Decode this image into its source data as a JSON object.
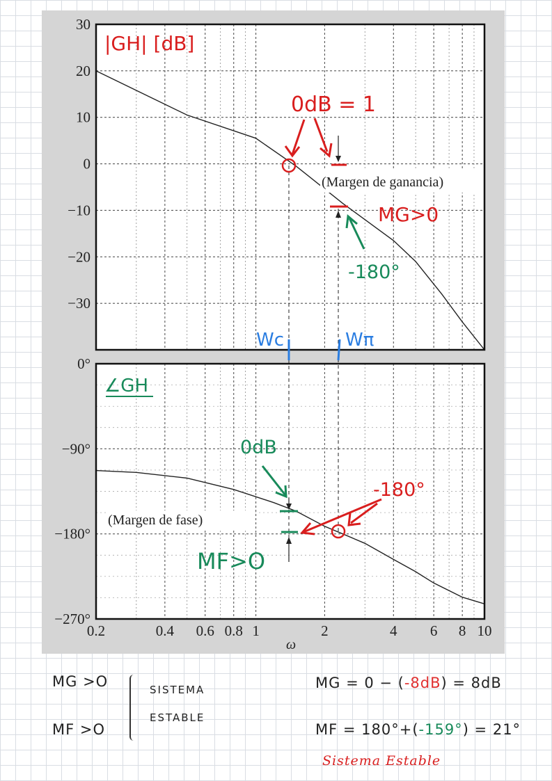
{
  "chart_data": [
    {
      "type": "line",
      "title": "|GH| [dB]",
      "xlabel": "ω",
      "xscale": "log",
      "xlim": [
        0.2,
        10
      ],
      "ylim": [
        -40,
        30
      ],
      "yticks": [
        "30",
        "20",
        "10",
        "0",
        "−10",
        "−20",
        "−30"
      ],
      "grid": true,
      "series": [
        {
          "x": [
            0.2,
            0.5,
            1.0,
            1.5,
            2.4,
            3.0,
            4.0,
            5.0,
            6.5,
            8.0,
            10.0
          ],
          "y": [
            20,
            10.5,
            5.5,
            -0.5,
            -8.5,
            -12,
            -16.5,
            -21,
            -28,
            -34,
            -40
          ]
        }
      ],
      "annotations": {
        "odb": "0dB = 1",
        "gain_margin": "(Margen de ganancia)",
        "mg_pos": "MG>0",
        "m180": "-180°",
        "wc": "Wc",
        "wpi": "Wπ"
      }
    },
    {
      "type": "line",
      "title": "∠GH",
      "xlabel": "ω",
      "xscale": "log",
      "xlim": [
        0.2,
        10
      ],
      "ylim": [
        -270,
        0
      ],
      "yticks": [
        "0°",
        "−90°",
        "−180°",
        "−270°"
      ],
      "xticks": [
        "0.2",
        "0.4",
        "0.6",
        "0.8",
        "1",
        "2",
        "4",
        "6",
        "8",
        "10"
      ],
      "grid": true,
      "series": [
        {
          "x": [
            0.2,
            0.3,
            0.5,
            0.8,
            1.2,
            1.5,
            2.0,
            2.4,
            3.0,
            4.0,
            5.0,
            6.0,
            8.0,
            10.0
          ],
          "y": [
            -113,
            -115,
            -121,
            -133,
            -147,
            -156,
            -172,
            -180,
            -190,
            -207,
            -220,
            -232,
            -247,
            -254
          ]
        }
      ],
      "annotations": {
        "odb": "0dB",
        "phase_margin": "(Margen de fase)",
        "m180": "-180°",
        "mf_pos": "MF>O"
      }
    }
  ],
  "notes": {
    "mg": "MG >O",
    "mf": "MF >O",
    "sistema": "SISTEMA",
    "estable": "ESTABLE",
    "mg_eq_a": "MG = 0 − (",
    "mg_eq_b": "-8dB",
    "mg_eq_c": ") = 8dB",
    "mf_eq_a": "MF = 180°+(",
    "mf_eq_b": "-159°",
    "mf_eq_c": ") = 21°",
    "conclusion": "Sistema Estable"
  }
}
